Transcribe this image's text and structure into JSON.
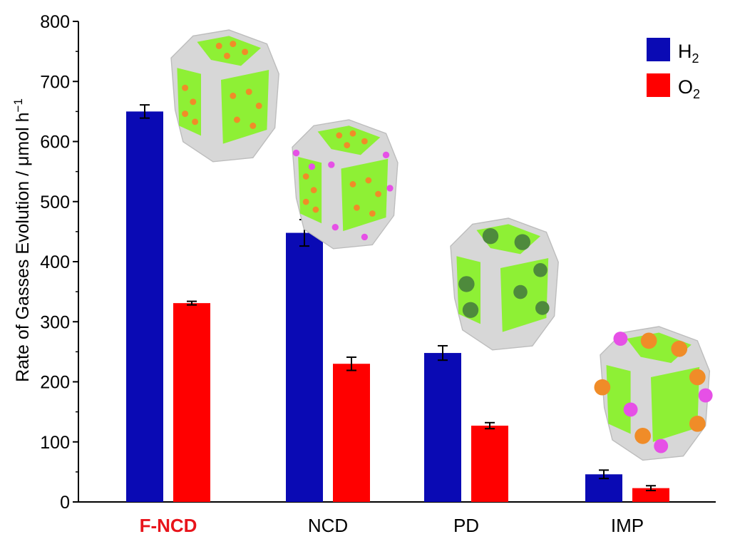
{
  "chart_data": {
    "type": "bar",
    "categories": [
      "F-NCD",
      "NCD",
      "PD",
      "IMP"
    ],
    "highlight_category": "F-NCD",
    "series": [
      {
        "name": "H",
        "name_sub": "2",
        "color": "#0a0ab4",
        "values": [
          650,
          448,
          248,
          46
        ],
        "errors": [
          11,
          22,
          12,
          7
        ]
      },
      {
        "name": "O",
        "name_sub": "2",
        "color": "#ff0000",
        "values": [
          331,
          230,
          127,
          23
        ],
        "errors": [
          3,
          11,
          5,
          4
        ]
      }
    ],
    "ylabel": "Rate of Gasses Evolution / μmol h",
    "ylabel_sup": "−1",
    "ylim": [
      0,
      800
    ],
    "yticks": [
      0,
      100,
      200,
      300,
      400,
      500,
      600,
      700,
      800
    ],
    "legend_position": "top-right",
    "grid": false,
    "colors": {
      "cube_face": "#8ef035",
      "cube_edge": "#d7d7d7",
      "dot_orange": "#f08c28",
      "dot_magenta": "#e650e6",
      "dot_darkgreen": "#4e8a3c"
    },
    "insets": [
      {
        "category": "F-NCD",
        "dots": "orange-small"
      },
      {
        "category": "NCD",
        "dots": "orange-magenta-small"
      },
      {
        "category": "PD",
        "dots": "darkgreen-large"
      },
      {
        "category": "IMP",
        "dots": "orange-magenta-large"
      }
    ]
  }
}
